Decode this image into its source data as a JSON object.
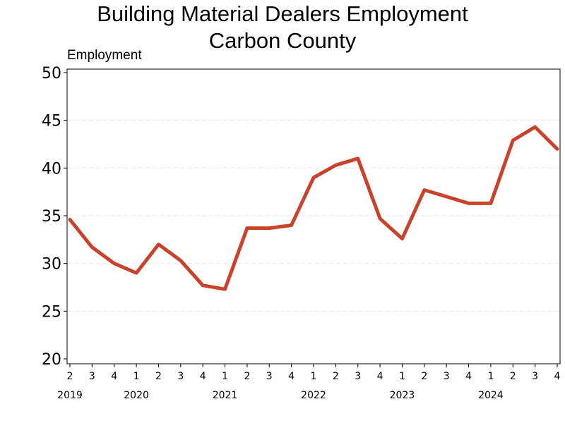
{
  "chart_data": {
    "type": "line",
    "title": "Building Material Dealers Employment",
    "subtitle": "Carbon County",
    "ylabel": "Employment",
    "ylim": [
      20,
      50
    ],
    "yticks": [
      20,
      25,
      30,
      35,
      40,
      45,
      50
    ],
    "grid": "horizontal dashed",
    "line_color": "#c9432c",
    "x": [
      "2019 Q2",
      "2019 Q3",
      "2019 Q4",
      "2020 Q1",
      "2020 Q2",
      "2020 Q3",
      "2020 Q4",
      "2021 Q1",
      "2021 Q2",
      "2021 Q3",
      "2021 Q4",
      "2022 Q1",
      "2022 Q2",
      "2022 Q3",
      "2022 Q4",
      "2023 Q1",
      "2023 Q2",
      "2023 Q3",
      "2023 Q4",
      "2024 Q1",
      "2024 Q2",
      "2024 Q3",
      "2024 Q4"
    ],
    "quarter_labels": [
      "2",
      "3",
      "4",
      "1",
      "2",
      "3",
      "4",
      "1",
      "2",
      "3",
      "4",
      "1",
      "2",
      "3",
      "4",
      "1",
      "2",
      "3",
      "4",
      "1",
      "2",
      "3",
      "4"
    ],
    "year_labels": [
      {
        "year": "2019",
        "start_index": 0
      },
      {
        "year": "2020",
        "start_index": 3
      },
      {
        "year": "2021",
        "start_index": 7
      },
      {
        "year": "2022",
        "start_index": 11
      },
      {
        "year": "2023",
        "start_index": 15
      },
      {
        "year": "2024",
        "start_index": 19
      }
    ],
    "values": [
      34.6,
      31.7,
      30.0,
      29.0,
      32.0,
      30.3,
      27.7,
      27.3,
      33.7,
      33.7,
      34.0,
      39.0,
      40.3,
      41.0,
      34.7,
      32.6,
      37.7,
      37.0,
      36.3,
      36.3,
      42.9,
      44.3,
      42.0
    ]
  }
}
